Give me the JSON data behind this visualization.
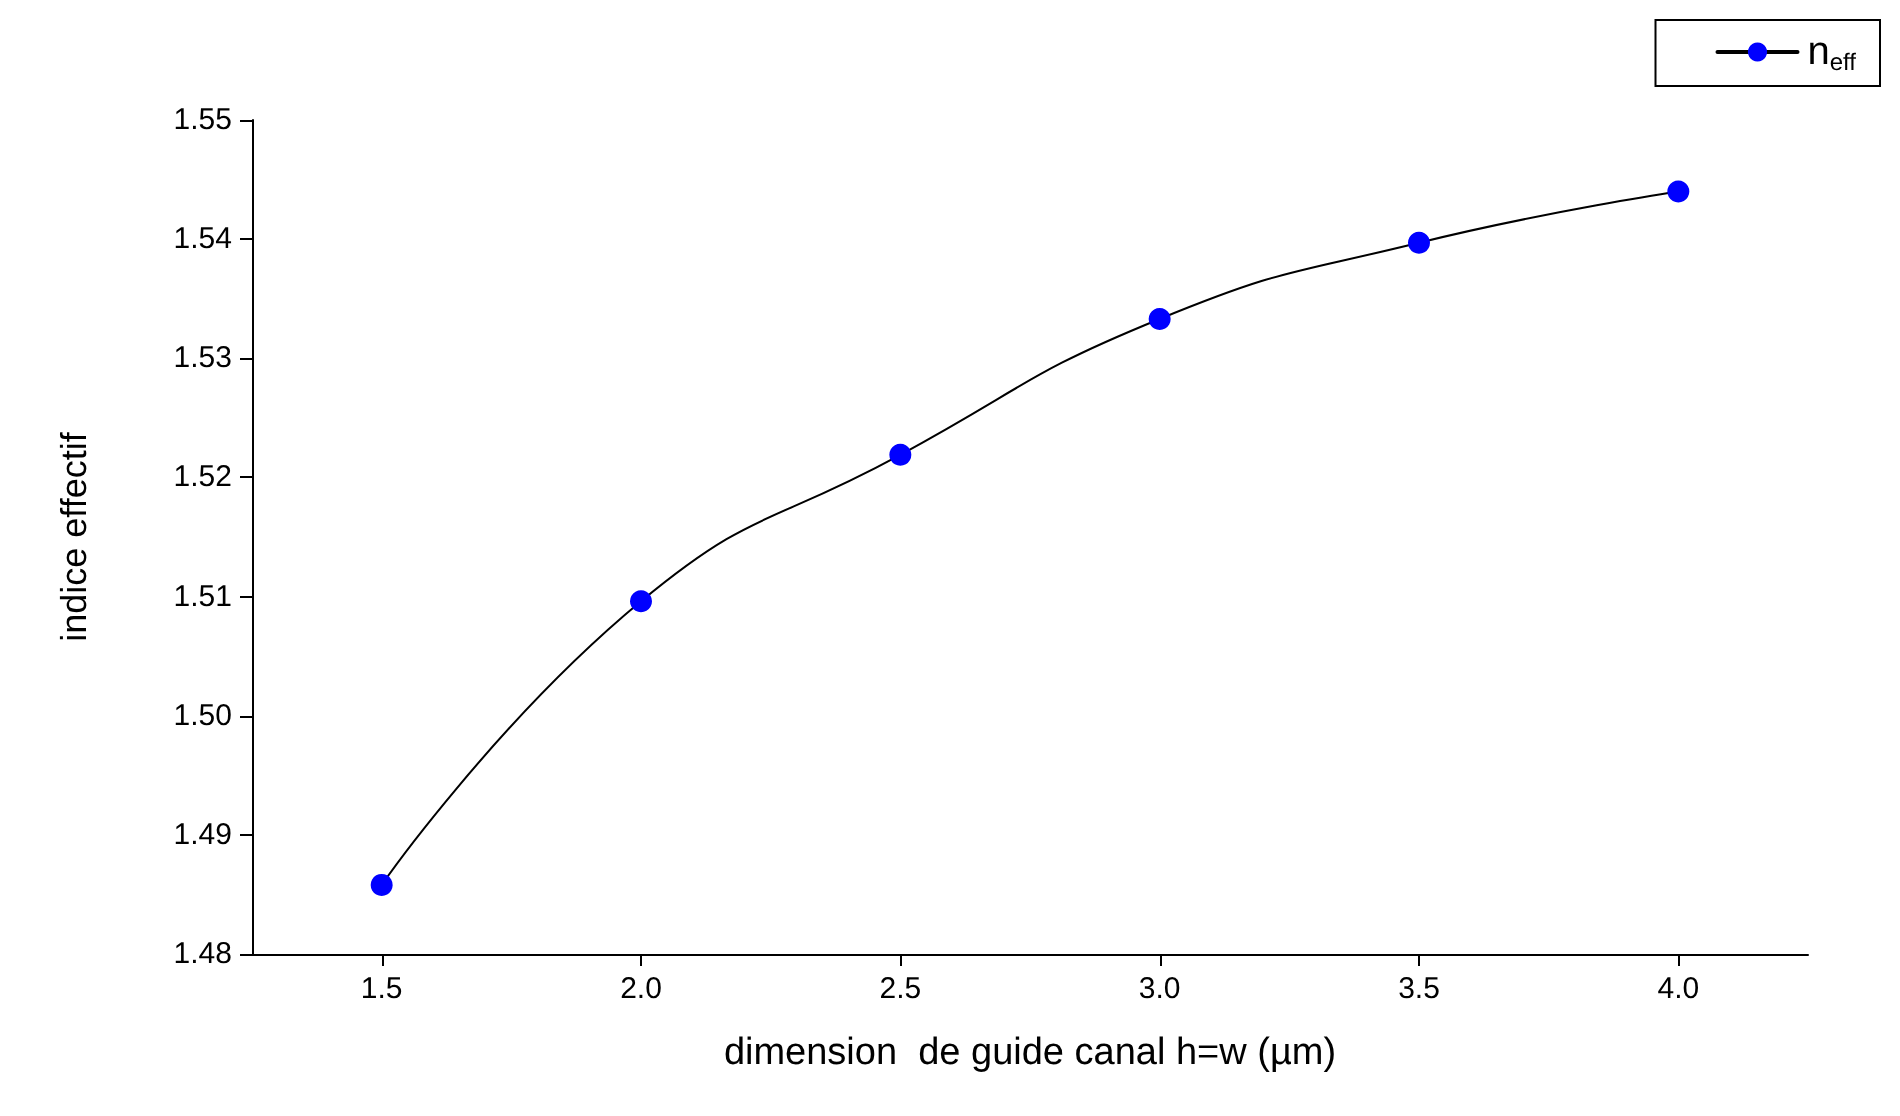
{
  "chart_data": {
    "type": "line",
    "xlabel": "dimension  de guide canal h=w (µm)",
    "ylabel": "indice effectif",
    "x": [
      1.5,
      2.0,
      2.5,
      3.0,
      3.5,
      4.0
    ],
    "series": [
      {
        "name": "n$_{eff}$",
        "color": "#0000ff",
        "values": [
          1.4858,
          1.5096,
          1.5219,
          1.5333,
          1.5397,
          1.544
        ]
      }
    ],
    "xlim": [
      1.25,
      4.25
    ],
    "xticks": [
      1.5,
      {
        "value": 2,
        "label": "2.0"
      },
      2.5,
      {
        "value": 3,
        "label": "3.0"
      },
      3.5,
      {
        "value": 4,
        "label": "4.0"
      }
    ],
    "ylim": [
      1.48,
      1.55
    ],
    "yticks": [
      1.48,
      1.49,
      {
        "value": 1.5,
        "label": "1.50"
      },
      1.51,
      1.52,
      1.53,
      1.54,
      1.55
    ],
    "marker": "circle",
    "line_style": "solid",
    "legend": "top right",
    "grid": false
  }
}
